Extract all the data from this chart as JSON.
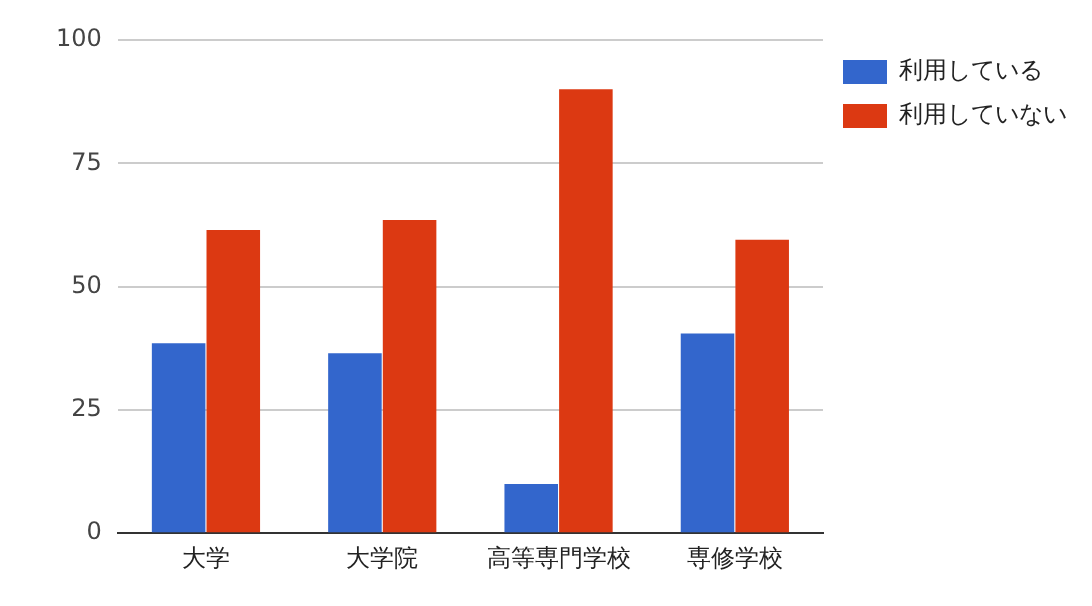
{
  "chart_data": {
    "type": "bar",
    "categories": [
      "大学",
      "大学院",
      "高等専門学校",
      "専修学校"
    ],
    "series": [
      {
        "name": "利用している",
        "color": "#3366cc",
        "values": [
          38.5,
          36.5,
          10,
          40.5
        ]
      },
      {
        "name": "利用していない",
        "color": "#dc3912",
        "values": [
          61.5,
          63.5,
          90,
          59.5
        ]
      }
    ],
    "ylim": [
      0,
      100
    ],
    "yticks": [
      0,
      25,
      50,
      75,
      100
    ],
    "grid": "y",
    "legend": "top right"
  }
}
